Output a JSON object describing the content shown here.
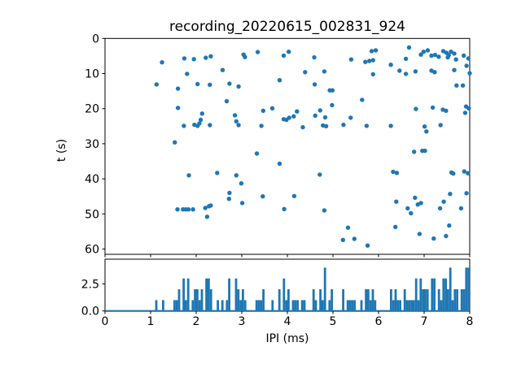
{
  "chart_data": [
    {
      "type": "scatter",
      "panel": "top",
      "title": "recording_20220615_002831_924",
      "xlabel": "IPI (ms)",
      "ylabel": "t (s)",
      "xlim": [
        0,
        8
      ],
      "ylim": [
        0,
        61.5
      ],
      "y_inverted": true,
      "grid": false,
      "legend": "none",
      "marker_color": "#1f77b4",
      "xtick_labels": [
        "0",
        "1",
        "2",
        "3",
        "4",
        "5",
        "6",
        "7",
        "8"
      ],
      "xtick_values": [
        0,
        1,
        2,
        3,
        4,
        5,
        6,
        7,
        8
      ],
      "ytick_labels": [
        "0",
        "10",
        "20",
        "30",
        "40",
        "50",
        "60"
      ],
      "ytick_values": [
        0,
        10,
        20,
        30,
        40,
        50,
        60
      ],
      "points": [
        [
          1.25,
          6.8
        ],
        [
          1.74,
          5.7
        ],
        [
          1.95,
          5.9
        ],
        [
          2.21,
          5.5
        ],
        [
          2.32,
          5.1
        ],
        [
          3.04,
          4.6
        ],
        [
          3.07,
          5.3
        ],
        [
          3.35,
          3.9
        ],
        [
          3.92,
          4.9
        ],
        [
          4.03,
          3.8
        ],
        [
          4.59,
          5.4
        ],
        [
          5.4,
          6.0
        ],
        [
          5.71,
          6.7
        ],
        [
          5.8,
          6.4
        ],
        [
          5.88,
          6.2
        ],
        [
          5.85,
          3.6
        ],
        [
          5.94,
          3.4
        ],
        [
          6.27,
          7.5
        ],
        [
          6.6,
          5.8
        ],
        [
          6.67,
          2.6
        ],
        [
          6.93,
          4.6
        ],
        [
          6.99,
          3.8
        ],
        [
          7.08,
          3.4
        ],
        [
          7.16,
          4.9
        ],
        [
          7.24,
          4.7
        ],
        [
          7.32,
          5.2
        ],
        [
          7.42,
          3.6
        ],
        [
          7.49,
          4.1
        ],
        [
          7.52,
          5.4
        ],
        [
          7.54,
          4.8
        ],
        [
          7.59,
          3.8
        ],
        [
          7.66,
          4.3
        ],
        [
          7.7,
          6.0
        ],
        [
          7.87,
          4.9
        ],
        [
          7.97,
          5.7
        ],
        [
          2.58,
          9.0
        ],
        [
          1.8,
          10.1
        ],
        [
          3.83,
          11.9
        ],
        [
          4.39,
          9.6
        ],
        [
          4.81,
          9.4
        ],
        [
          5.88,
          10.2
        ],
        [
          6.46,
          9.2
        ],
        [
          6.6,
          10.1
        ],
        [
          6.81,
          9.4
        ],
        [
          7.16,
          9.2
        ],
        [
          7.23,
          9.6
        ],
        [
          7.66,
          9.0
        ],
        [
          7.93,
          7.8
        ],
        [
          8.0,
          9.9
        ],
        [
          1.13,
          13.1
        ],
        [
          1.6,
          14.3
        ],
        [
          2.03,
          13.0
        ],
        [
          2.3,
          13.2
        ],
        [
          2.73,
          12.9
        ],
        [
          2.93,
          13.7
        ],
        [
          4.6,
          13.1
        ],
        [
          4.93,
          14.8
        ],
        [
          4.99,
          14.8
        ],
        [
          7.71,
          13.4
        ],
        [
          7.85,
          13.4
        ],
        [
          2.67,
          17.9
        ],
        [
          5.64,
          17.5
        ],
        [
          4.98,
          19.0
        ],
        [
          1.6,
          19.8
        ],
        [
          3.67,
          19.9
        ],
        [
          3.47,
          20.6
        ],
        [
          4.21,
          20.8
        ],
        [
          4.72,
          20.5
        ],
        [
          6.82,
          20.1
        ],
        [
          7.19,
          19.7
        ],
        [
          7.41,
          20.3
        ],
        [
          7.48,
          20.6
        ],
        [
          7.92,
          19.4
        ],
        [
          7.98,
          19.9
        ],
        [
          7.9,
          21.2
        ],
        [
          2.13,
          21.4
        ],
        [
          2.85,
          21.9
        ],
        [
          4.14,
          22.2
        ],
        [
          4.61,
          22.0
        ],
        [
          4.83,
          22.5
        ],
        [
          5.39,
          22.6
        ],
        [
          3.92,
          23.0
        ],
        [
          3.98,
          23.2
        ],
        [
          4.04,
          22.6
        ],
        [
          2.1,
          23.2
        ],
        [
          2.88,
          23.6
        ],
        [
          2.07,
          24.2
        ],
        [
          1.73,
          24.9
        ],
        [
          1.96,
          24.6
        ],
        [
          2.03,
          24.9
        ],
        [
          2.3,
          24.7
        ],
        [
          2.93,
          24.7
        ],
        [
          3.43,
          24.9
        ],
        [
          4.34,
          25.3
        ],
        [
          4.78,
          24.8
        ],
        [
          4.85,
          25.0
        ],
        [
          5.23,
          24.6
        ],
        [
          5.74,
          24.9
        ],
        [
          6.27,
          24.9
        ],
        [
          7.01,
          25.1
        ],
        [
          7.36,
          24.7
        ],
        [
          7.05,
          26.5
        ],
        [
          1.53,
          29.6
        ],
        [
          3.33,
          32.8
        ],
        [
          6.78,
          32.3
        ],
        [
          6.96,
          32.0
        ],
        [
          7.02,
          32.0
        ],
        [
          3.83,
          35.7
        ],
        [
          1.84,
          39.0
        ],
        [
          2.46,
          38.3
        ],
        [
          2.88,
          39.0
        ],
        [
          4.71,
          38.8
        ],
        [
          6.32,
          38.0
        ],
        [
          6.4,
          38.3
        ],
        [
          7.6,
          38.2
        ],
        [
          7.64,
          38.5
        ],
        [
          7.88,
          37.9
        ],
        [
          7.96,
          38.4
        ],
        [
          2.99,
          41.3
        ],
        [
          2.73,
          44.0
        ],
        [
          2.72,
          45.7
        ],
        [
          3.01,
          46.9
        ],
        [
          3.46,
          45.0
        ],
        [
          4.15,
          44.9
        ],
        [
          6.39,
          46.5
        ],
        [
          6.8,
          45.4
        ],
        [
          6.86,
          47.3
        ],
        [
          6.93,
          46.9
        ],
        [
          7.43,
          46.5
        ],
        [
          7.57,
          44.3
        ],
        [
          7.93,
          44.1
        ],
        [
          1.59,
          48.7
        ],
        [
          1.71,
          48.7
        ],
        [
          1.77,
          48.7
        ],
        [
          1.83,
          48.7
        ],
        [
          1.93,
          48.7
        ],
        [
          2.2,
          48.3
        ],
        [
          2.28,
          47.8
        ],
        [
          2.32,
          47.6
        ],
        [
          2.24,
          50.8
        ],
        [
          3.93,
          48.6
        ],
        [
          4.81,
          49.0
        ],
        [
          6.64,
          48.4
        ],
        [
          6.71,
          49.8
        ],
        [
          7.35,
          48.4
        ],
        [
          7.81,
          48.4
        ],
        [
          5.33,
          53.9
        ],
        [
          6.37,
          53.7
        ],
        [
          7.55,
          53.3
        ],
        [
          6.9,
          55.7
        ],
        [
          5.22,
          57.4
        ],
        [
          5.47,
          57.1
        ],
        [
          7.21,
          57.0
        ],
        [
          7.48,
          56.3
        ],
        [
          5.76,
          59.0
        ]
      ]
    },
    {
      "type": "bar",
      "panel": "bottom",
      "subtype": "histogram",
      "counts_derived_from": "histogram of the IPI (x) values of the scatter panel above",
      "bin_width": 0.05,
      "xlim": [
        0,
        8
      ],
      "ylim": [
        0,
        4.78
      ],
      "grid": false,
      "bar_color": "#1f77b4",
      "baseline_color": "#1f77b4",
      "ytick_labels": [
        "0.0",
        "2.5"
      ],
      "ytick_values": [
        0,
        2.5
      ],
      "xtick_labels": [
        "0",
        "1",
        "2",
        "3",
        "4",
        "5",
        "6",
        "7",
        "8"
      ],
      "xtick_values": [
        0,
        1,
        2,
        3,
        4,
        5,
        6,
        7,
        8
      ]
    }
  ],
  "figure": {
    "background": "#ffffff",
    "spine_color": "#000000"
  }
}
